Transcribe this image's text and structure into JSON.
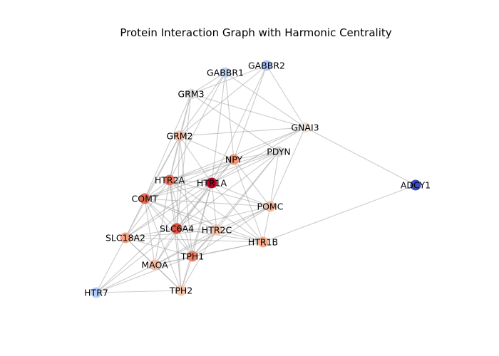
{
  "title": "Protein Interaction Graph with Harmonic Centrality",
  "graph": {
    "type": "network",
    "colormap": "coolwarm",
    "nodes": [
      {
        "id": "GABBR1",
        "color": "#c3d5f4"
      },
      {
        "id": "GABBR2",
        "color": "#aac7fd"
      },
      {
        "id": "GRM3",
        "color": "#dcdddd"
      },
      {
        "id": "GNAI3",
        "color": "#efe4dc"
      },
      {
        "id": "GRM2",
        "color": "#f6bda2"
      },
      {
        "id": "NPY",
        "color": "#f39475"
      },
      {
        "id": "PDYN",
        "color": "#dcdddd"
      },
      {
        "id": "HTR2A",
        "color": "#e7745b"
      },
      {
        "id": "HTR1A",
        "color": "#b40426"
      },
      {
        "id": "ADCY1",
        "color": "#3b4cc0"
      },
      {
        "id": "COMT",
        "color": "#e36c55"
      },
      {
        "id": "POMC",
        "color": "#f7b89c"
      },
      {
        "id": "SLC6A4",
        "color": "#d65244"
      },
      {
        "id": "HTR2C",
        "color": "#f5c1a9"
      },
      {
        "id": "SLC18A2",
        "color": "#f6a385"
      },
      {
        "id": "HTR1B",
        "color": "#f7ac8e"
      },
      {
        "id": "TPH1",
        "color": "#ec7f63"
      },
      {
        "id": "MAOA",
        "color": "#f5c0a7"
      },
      {
        "id": "HTR7",
        "color": "#b3cdfb"
      },
      {
        "id": "TPH2",
        "color": "#f4c5ad"
      }
    ],
    "edges": [
      [
        "GABBR1",
        "GRM3"
      ],
      [
        "GABBR1",
        "GNAI3"
      ],
      [
        "GABBR1",
        "GRM2"
      ],
      [
        "GABBR1",
        "NPY"
      ],
      [
        "GABBR1",
        "HTR1A"
      ],
      [
        "GABBR1",
        "HTR2A"
      ],
      [
        "GABBR2",
        "GRM3"
      ],
      [
        "GABBR2",
        "GNAI3"
      ],
      [
        "GABBR2",
        "GRM2"
      ],
      [
        "GABBR2",
        "NPY"
      ],
      [
        "GABBR2",
        "HTR1A"
      ],
      [
        "GRM3",
        "GRM2"
      ],
      [
        "GRM3",
        "GNAI3"
      ],
      [
        "GRM3",
        "HTR2A"
      ],
      [
        "GRM3",
        "COMT"
      ],
      [
        "GRM3",
        "SLC6A4"
      ],
      [
        "GRM3",
        "PDYN"
      ],
      [
        "GNAI3",
        "GRM2"
      ],
      [
        "GNAI3",
        "ADCY1"
      ],
      [
        "GNAI3",
        "NPY"
      ],
      [
        "GNAI3",
        "HTR1A"
      ],
      [
        "GNAI3",
        "HTR2A"
      ],
      [
        "GNAI3",
        "POMC"
      ],
      [
        "GRM2",
        "HTR2A"
      ],
      [
        "GRM2",
        "COMT"
      ],
      [
        "GRM2",
        "SLC6A4"
      ],
      [
        "GRM2",
        "TPH1"
      ],
      [
        "GRM2",
        "HTR1A"
      ],
      [
        "GRM2",
        "SLC18A2"
      ],
      [
        "GRM2",
        "NPY"
      ],
      [
        "NPY",
        "PDYN"
      ],
      [
        "NPY",
        "HTR1A"
      ],
      [
        "NPY",
        "POMC"
      ],
      [
        "NPY",
        "HTR2A"
      ],
      [
        "NPY",
        "COMT"
      ],
      [
        "NPY",
        "HTR1B"
      ],
      [
        "NPY",
        "SLC6A4"
      ],
      [
        "NPY",
        "SLC18A2"
      ],
      [
        "PDYN",
        "HTR1A"
      ],
      [
        "PDYN",
        "POMC"
      ],
      [
        "PDYN",
        "HTR2A"
      ],
      [
        "PDYN",
        "COMT"
      ],
      [
        "PDYN",
        "SLC6A4"
      ],
      [
        "PDYN",
        "HTR2C"
      ],
      [
        "PDYN",
        "TPH1"
      ],
      [
        "HTR2A",
        "HTR1A"
      ],
      [
        "HTR2A",
        "COMT"
      ],
      [
        "HTR2A",
        "SLC6A4"
      ],
      [
        "HTR2A",
        "HTR2C"
      ],
      [
        "HTR2A",
        "SLC18A2"
      ],
      [
        "HTR2A",
        "TPH1"
      ],
      [
        "HTR2A",
        "MAOA"
      ],
      [
        "HTR2A",
        "POMC"
      ],
      [
        "HTR2A",
        "HTR1B"
      ],
      [
        "HTR2A",
        "TPH2"
      ],
      [
        "HTR1A",
        "COMT"
      ],
      [
        "HTR1A",
        "POMC"
      ],
      [
        "HTR1A",
        "SLC6A4"
      ],
      [
        "HTR1A",
        "HTR2C"
      ],
      [
        "HTR1A",
        "HTR1B"
      ],
      [
        "HTR1A",
        "SLC18A2"
      ],
      [
        "HTR1A",
        "TPH1"
      ],
      [
        "HTR1A",
        "MAOA"
      ],
      [
        "HTR1A",
        "TPH2"
      ],
      [
        "HTR1A",
        "HTR7"
      ],
      [
        "ADCY1",
        "HTR1B"
      ],
      [
        "COMT",
        "SLC6A4"
      ],
      [
        "COMT",
        "SLC18A2"
      ],
      [
        "COMT",
        "MAOA"
      ],
      [
        "COMT",
        "TPH1"
      ],
      [
        "COMT",
        "HTR2C"
      ],
      [
        "COMT",
        "POMC"
      ],
      [
        "COMT",
        "TPH2"
      ],
      [
        "COMT",
        "HTR1B"
      ],
      [
        "POMC",
        "SLC6A4"
      ],
      [
        "POMC",
        "HTR2C"
      ],
      [
        "POMC",
        "HTR1B"
      ],
      [
        "POMC",
        "TPH1"
      ],
      [
        "POMC",
        "MAOA"
      ],
      [
        "SLC6A4",
        "HTR2C"
      ],
      [
        "SLC6A4",
        "SLC18A2"
      ],
      [
        "SLC6A4",
        "TPH1"
      ],
      [
        "SLC6A4",
        "MAOA"
      ],
      [
        "SLC6A4",
        "HTR1B"
      ],
      [
        "SLC6A4",
        "TPH2"
      ],
      [
        "SLC6A4",
        "HTR7"
      ],
      [
        "HTR2C",
        "HTR1B"
      ],
      [
        "HTR2C",
        "TPH1"
      ],
      [
        "HTR2C",
        "MAOA"
      ],
      [
        "HTR2C",
        "SLC18A2"
      ],
      [
        "HTR2C",
        "TPH2"
      ],
      [
        "SLC18A2",
        "TPH1"
      ],
      [
        "SLC18A2",
        "MAOA"
      ],
      [
        "SLC18A2",
        "HTR7"
      ],
      [
        "SLC18A2",
        "TPH2"
      ],
      [
        "SLC18A2",
        "HTR1B"
      ],
      [
        "HTR1B",
        "TPH1"
      ],
      [
        "HTR1B",
        "MAOA"
      ],
      [
        "TPH1",
        "MAOA"
      ],
      [
        "TPH1",
        "TPH2"
      ],
      [
        "TPH1",
        "HTR7"
      ],
      [
        "MAOA",
        "TPH2"
      ],
      [
        "MAOA",
        "HTR7"
      ],
      [
        "HTR7",
        "TPH2"
      ]
    ]
  }
}
